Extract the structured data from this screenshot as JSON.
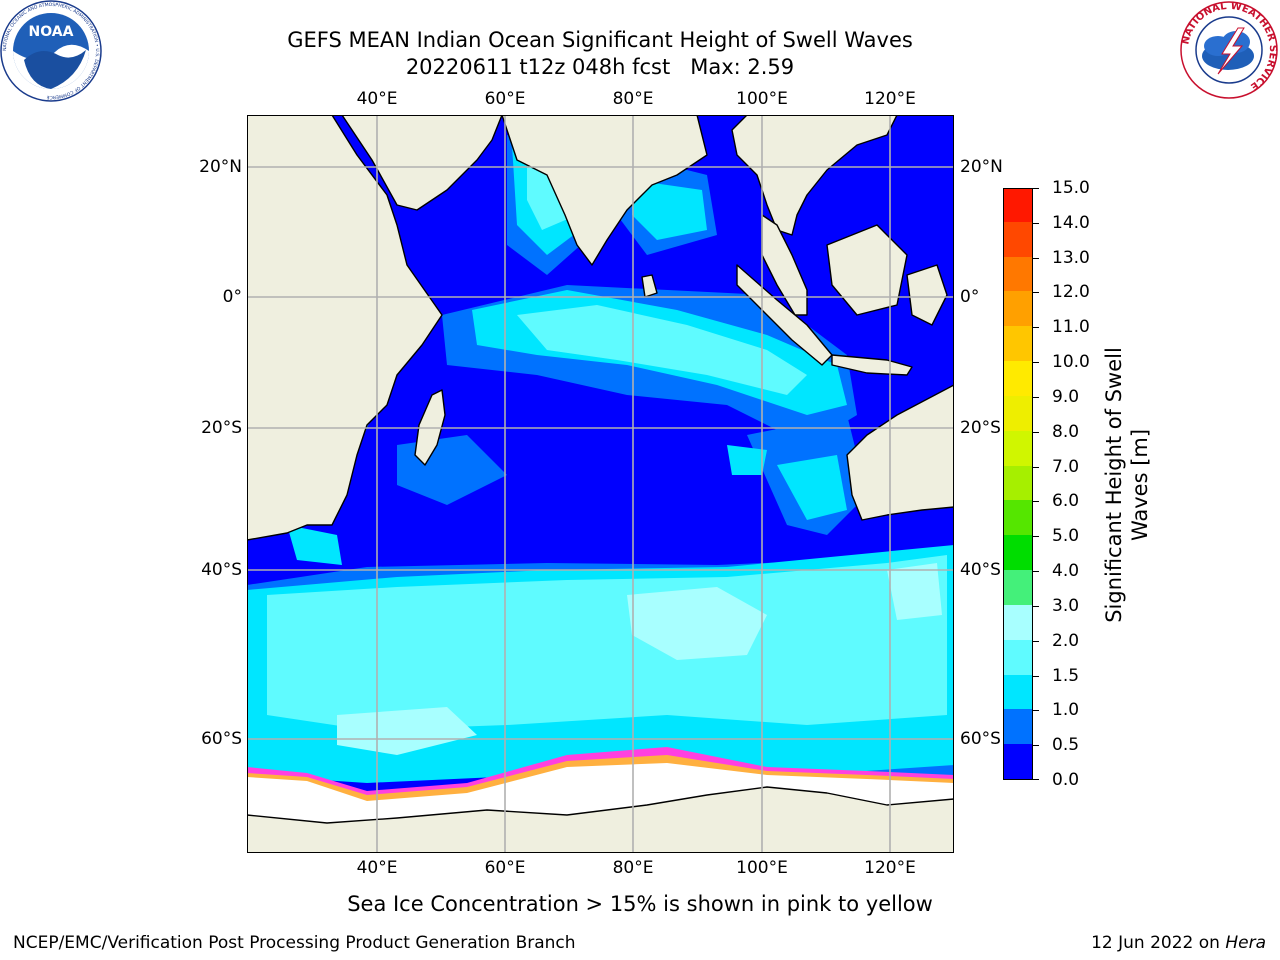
{
  "header": {
    "title_line1": "GEFS MEAN Indian Ocean Significant Height of Swell Waves",
    "title_line2": "20220611 t12z 048h fcst   Max: 2.59"
  },
  "map": {
    "lon_labels": [
      "40°E",
      "60°E",
      "80°E",
      "100°E",
      "120°E"
    ],
    "lat_labels": [
      "20°N",
      "0°",
      "20°S",
      "40°S",
      "60°S"
    ],
    "land_color": "#efefdf",
    "ice_color": "#ffffff",
    "grid_color": "#b0b0b0"
  },
  "colorbar": {
    "title_line1": "Significant Height of Swell",
    "title_line2": "Waves [m]",
    "labels": [
      "0.0",
      "0.5",
      "1.0",
      "1.5",
      "2.0",
      "3.0",
      "4.0",
      "5.0",
      "6.0",
      "7.0",
      "8.0",
      "9.0",
      "10.0",
      "11.0",
      "12.0",
      "13.0",
      "14.0",
      "15.0"
    ],
    "colors": [
      "#0000ff",
      "#0072ff",
      "#00e6ff",
      "#5ffbff",
      "#a8ffff",
      "#44f07a",
      "#00dd00",
      "#55e600",
      "#a6ef00",
      "#d0f600",
      "#eeee00",
      "#ffea00",
      "#ffc600",
      "#ffa000",
      "#ff7800",
      "#ff4800",
      "#ff1800"
    ]
  },
  "ice_note": "Sea Ice Concentration > 15% is shown in pink to yellow",
  "footer": {
    "left": "NCEP/EMC/Verification Post Processing Product Generation Branch",
    "date": "12 Jun 2022 on",
    "host": "Hera"
  },
  "logos": {
    "noaa_text": "NOAA",
    "noaa_ring": "NATIONAL OCEANIC AND ATMOSPHERIC ADMINISTRATION • U.S. DEPARTMENT OF COMMERCE",
    "nws_ring": "NATIONAL WEATHER SERVICE"
  }
}
